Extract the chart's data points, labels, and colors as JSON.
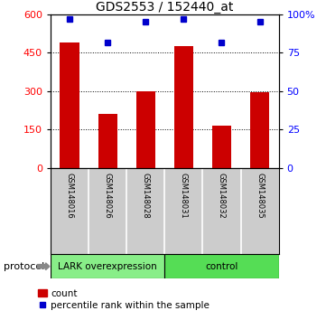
{
  "title": "GDS2553 / 152440_at",
  "samples": [
    "GSM148016",
    "GSM148026",
    "GSM148028",
    "GSM148031",
    "GSM148032",
    "GSM148035"
  ],
  "counts": [
    490,
    210,
    300,
    475,
    165,
    295
  ],
  "percentile_ranks": [
    97,
    82,
    95,
    97,
    82,
    95
  ],
  "bar_color": "#cc0000",
  "marker_color": "#0000cc",
  "ylim_left": [
    0,
    600
  ],
  "ylim_right": [
    0,
    100
  ],
  "yticks_left": [
    0,
    150,
    300,
    450,
    600
  ],
  "ytick_labels_right": [
    "0",
    "25",
    "50",
    "75",
    "100%"
  ],
  "yticks_right": [
    0,
    25,
    50,
    75,
    100
  ],
  "gridlines_at": [
    150,
    300,
    450
  ],
  "groups": [
    {
      "label": "LARK overexpression",
      "color": "#88ee88",
      "count": 3
    },
    {
      "label": "control",
      "color": "#55dd55",
      "count": 3
    }
  ],
  "protocol_label": "protocol",
  "background_color": "#ffffff",
  "sample_box_color": "#cccccc",
  "bar_width": 0.5,
  "legend_count_label": "count",
  "legend_pct_label": "percentile rank within the sample"
}
